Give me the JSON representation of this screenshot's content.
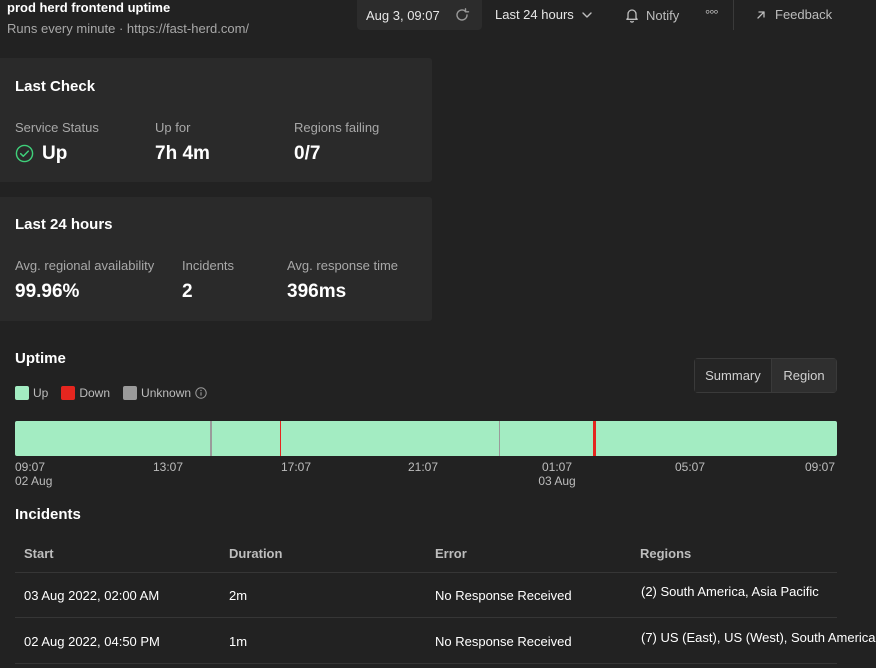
{
  "header": {
    "title": "prod herd frontend uptime",
    "subtitle": "Runs every minute · https://fast-herd.com/"
  },
  "toolbar": {
    "date": "Aug 3, 09:07",
    "range": "Last 24 hours",
    "notify": "Notify",
    "more": "°°°",
    "feedback": "Feedback"
  },
  "last_check": {
    "title": "Last Check",
    "service_status_label": "Service Status",
    "service_status_value": "Up",
    "up_for_label": "Up for",
    "up_for_value": "7h 4m",
    "regions_failing_label": "Regions failing",
    "regions_failing_value": "0/7"
  },
  "last_24": {
    "title": "Last 24 hours",
    "availability_label": "Avg. regional availability",
    "availability_value": "99.96%",
    "incidents_label": "Incidents",
    "incidents_value": "2",
    "response_label": "Avg. response time",
    "response_value": "396ms"
  },
  "uptime": {
    "title": "Uptime",
    "legend": {
      "up": "Up",
      "down": "Down",
      "unknown": "Unknown"
    },
    "views": {
      "summary": "Summary",
      "region": "Region"
    },
    "colors": {
      "up": "#a3ecc2",
      "down": "#e5261f",
      "unknown": "#9a9a9a"
    },
    "axis": [
      {
        "time": "09:07",
        "date": "02 Aug"
      },
      {
        "time": "13:07",
        "date": ""
      },
      {
        "time": "17:07",
        "date": ""
      },
      {
        "time": "21:07",
        "date": ""
      },
      {
        "time": "01:07",
        "date": "03 Aug"
      },
      {
        "time": "05:07",
        "date": ""
      },
      {
        "time": "09:07",
        "date": ""
      }
    ]
  },
  "incidents": {
    "title": "Incidents",
    "columns": {
      "start": "Start",
      "duration": "Duration",
      "error": "Error",
      "regions": "Regions"
    },
    "rows": [
      {
        "start": "03 Aug 2022, 02:00 AM",
        "duration": "2m",
        "error": "No Response Received",
        "regions": "(2) South America, Asia Pacific"
      },
      {
        "start": "02 Aug 2022, 04:50 PM",
        "duration": "1m",
        "error": "No Response Received",
        "regions": "(7) US (East), US (West), South America"
      }
    ]
  }
}
